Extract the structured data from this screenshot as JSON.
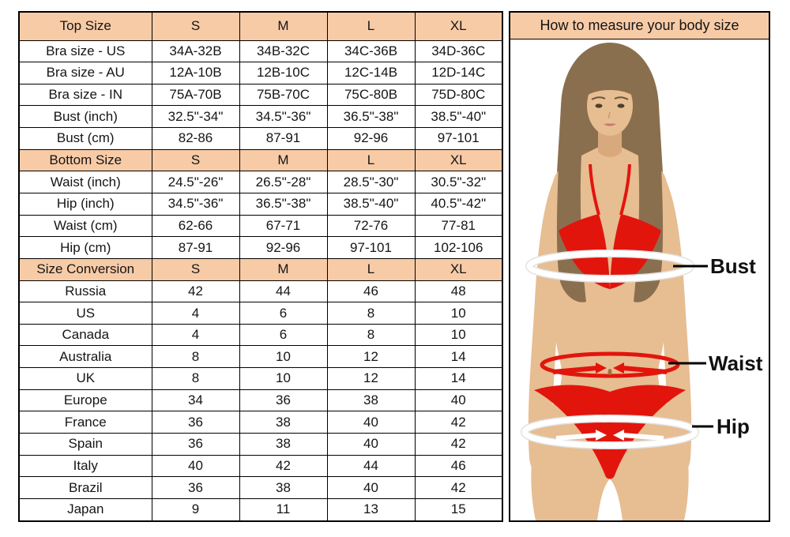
{
  "table": {
    "sections": [
      {
        "header": {
          "label": "Top Size",
          "cols": [
            "S",
            "M",
            "L",
            "XL"
          ]
        },
        "rows": [
          {
            "label": "Bra size - US",
            "values": [
              "34A-32B",
              "34B-32C",
              "34C-36B",
              "34D-36C"
            ]
          },
          {
            "label": "Bra size - AU",
            "values": [
              "12A-10B",
              "12B-10C",
              "12C-14B",
              "12D-14C"
            ]
          },
          {
            "label": "Bra size - IN",
            "values": [
              "75A-70B",
              "75B-70C",
              "75C-80B",
              "75D-80C"
            ]
          },
          {
            "label": "Bust (inch)",
            "values": [
              "32.5\"-34\"",
              "34.5\"-36\"",
              "36.5\"-38\"",
              "38.5\"-40\""
            ]
          },
          {
            "label": "Bust (cm)",
            "values": [
              "82-86",
              "87-91",
              "92-96",
              "97-101"
            ]
          }
        ]
      },
      {
        "header": {
          "label": "Bottom Size",
          "cols": [
            "S",
            "M",
            "L",
            "XL"
          ]
        },
        "rows": [
          {
            "label": "Waist (inch)",
            "values": [
              "24.5\"-26\"",
              "26.5\"-28\"",
              "28.5\"-30\"",
              "30.5\"-32\""
            ]
          },
          {
            "label": "Hip (inch)",
            "values": [
              "34.5\"-36\"",
              "36.5\"-38\"",
              "38.5\"-40\"",
              "40.5\"-42\""
            ]
          },
          {
            "label": "Waist (cm)",
            "values": [
              "62-66",
              "67-71",
              "72-76",
              "77-81"
            ]
          },
          {
            "label": "Hip (cm)",
            "values": [
              "87-91",
              "92-96",
              "97-101",
              "102-106"
            ]
          }
        ]
      },
      {
        "header": {
          "label": "Size Conversion",
          "cols": [
            "S",
            "M",
            "L",
            "XL"
          ]
        },
        "rows": [
          {
            "label": "Russia",
            "values": [
              "42",
              "44",
              "46",
              "48"
            ]
          },
          {
            "label": "US",
            "values": [
              "4",
              "6",
              "8",
              "10"
            ]
          },
          {
            "label": "Canada",
            "values": [
              "4",
              "6",
              "8",
              "10"
            ]
          },
          {
            "label": "Australia",
            "values": [
              "8",
              "10",
              "12",
              "14"
            ]
          },
          {
            "label": "UK",
            "values": [
              "8",
              "10",
              "12",
              "14"
            ]
          },
          {
            "label": "Europe",
            "values": [
              "34",
              "36",
              "38",
              "40"
            ]
          },
          {
            "label": "France",
            "values": [
              "36",
              "38",
              "40",
              "42"
            ]
          },
          {
            "label": "Spain",
            "values": [
              "36",
              "38",
              "40",
              "42"
            ]
          },
          {
            "label": "Italy",
            "values": [
              "40",
              "42",
              "44",
              "46"
            ]
          },
          {
            "label": "Brazil",
            "values": [
              "36",
              "38",
              "40",
              "42"
            ]
          },
          {
            "label": "Japan",
            "values": [
              "9",
              "11",
              "13",
              "15"
            ]
          }
        ]
      }
    ]
  },
  "measure_panel": {
    "title": "How to measure your body size",
    "labels": {
      "bust": "Bust",
      "waist": "Waist",
      "hip": "Hip"
    }
  },
  "colors": {
    "header_bg": "#f8cba7",
    "border": "#000000",
    "bikini_red": "#e2150d",
    "skin": "#e7bd92",
    "hair": "#8a6f4f",
    "label_text": "#111111"
  }
}
